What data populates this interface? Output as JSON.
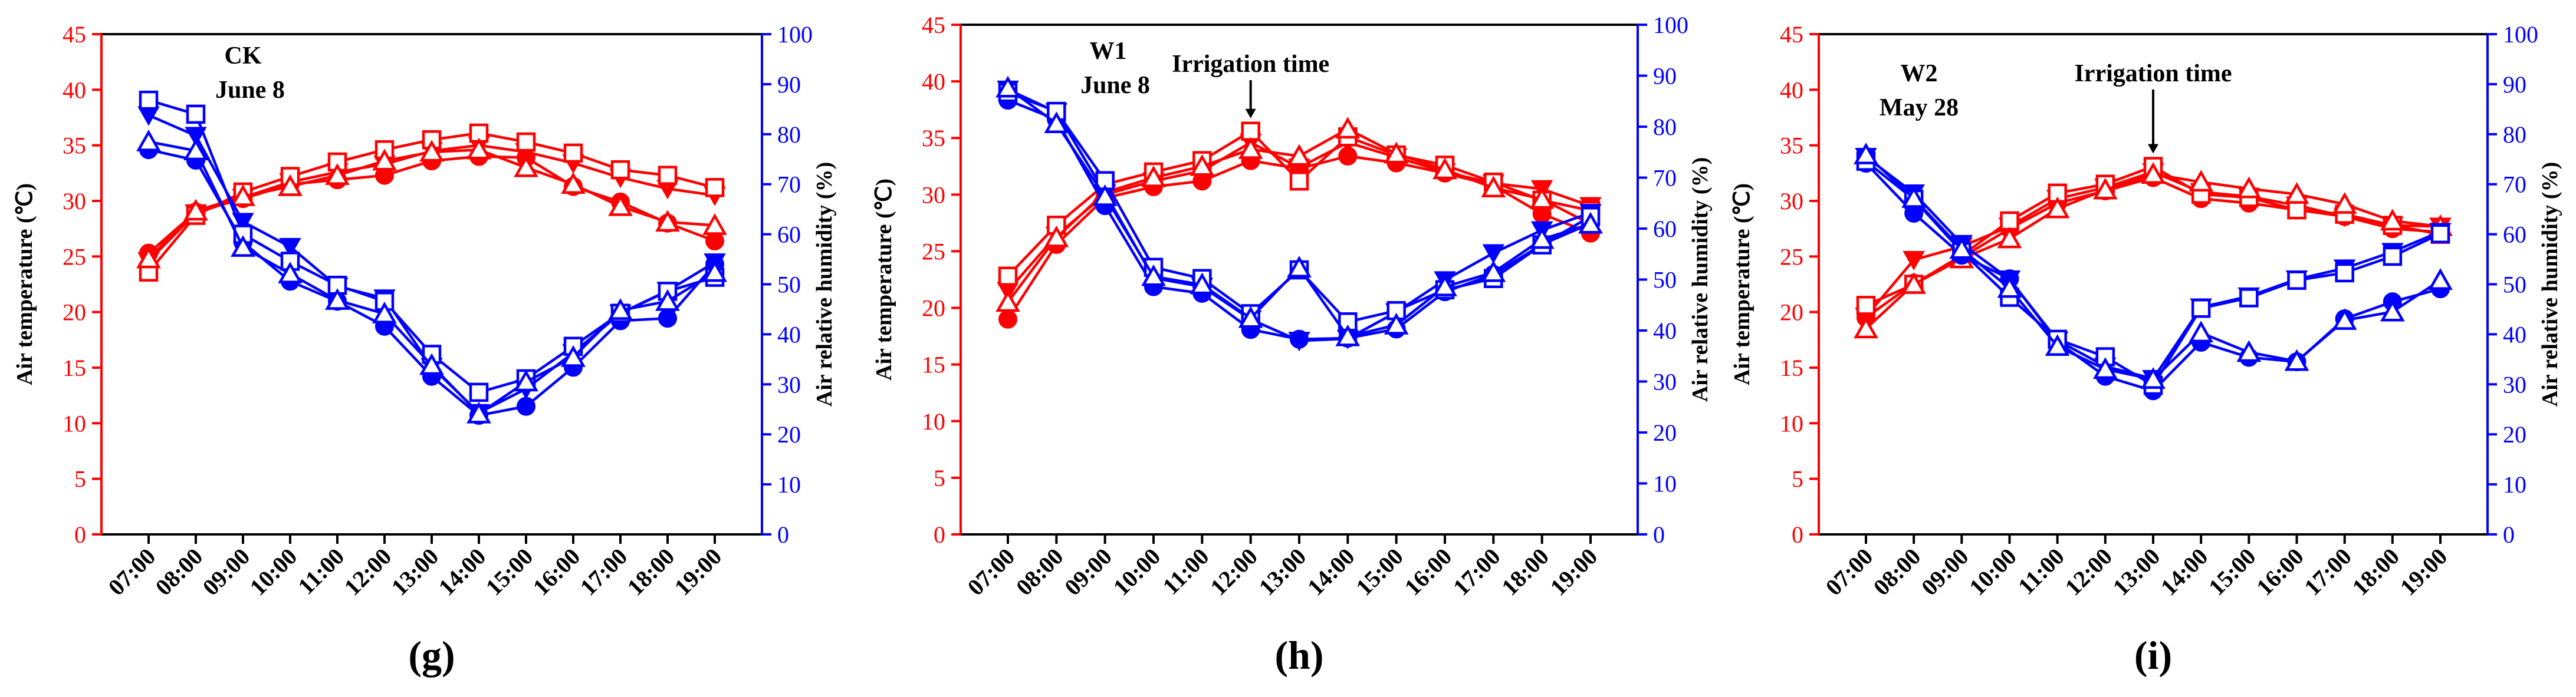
{
  "chart_data": [
    {
      "type": "line",
      "panel_label": "(g)",
      "treatment": "CK",
      "date": "June 8",
      "annotation": "",
      "irrigation_index": -1,
      "x": [
        "07:00",
        "08:00",
        "09:00",
        "10:00",
        "11:00",
        "12:00",
        "13:00",
        "14:00",
        "15:00",
        "16:00",
        "17:00",
        "18:00",
        "19:00"
      ],
      "ylabel_left": "Air temperature (℃)",
      "ylabel_right": "Air relative humidity (%)",
      "ylim_left": [
        0,
        45
      ],
      "ylim_right": [
        0,
        100
      ],
      "yticks_left": [
        "0",
        "5",
        "10",
        "15",
        "20",
        "25",
        "30",
        "35",
        "40",
        "45"
      ],
      "yticks_right": [
        "0",
        "10",
        "20",
        "30",
        "40",
        "50",
        "60",
        "70",
        "80",
        "90",
        "100"
      ],
      "colors": {
        "temperature": "#ff0000",
        "humidity": "#0000ff"
      },
      "temperature_series": [
        {
          "marker": "filled-circle",
          "values": [
            25.3,
            29.0,
            30.2,
            31.5,
            31.9,
            32.3,
            33.6,
            34.0,
            33.9,
            31.3,
            29.9,
            28.0,
            26.4
          ]
        },
        {
          "marker": "filled-triangle-down",
          "values": [
            24.6,
            28.9,
            30.3,
            31.7,
            32.6,
            33.3,
            34.5,
            35.0,
            34.4,
            33.4,
            32.1,
            31.1,
            30.5
          ]
        },
        {
          "marker": "open-square",
          "values": [
            23.6,
            28.7,
            30.8,
            32.2,
            33.5,
            34.6,
            35.5,
            36.1,
            35.3,
            34.3,
            32.8,
            32.3,
            31.2
          ]
        },
        {
          "marker": "open-triangle-up",
          "values": [
            24.8,
            29.1,
            30.4,
            31.3,
            32.3,
            33.6,
            34.4,
            34.6,
            33.0,
            31.5,
            29.5,
            28.1,
            27.8
          ]
        }
      ],
      "humidity_series": [
        {
          "marker": "filled-circle",
          "values": [
            76.9,
            74.8,
            58.4,
            50.6,
            46.6,
            41.6,
            31.6,
            23.8,
            25.6,
            33.4,
            42.7,
            43.2,
            54.0
          ]
        },
        {
          "marker": "filled-triangle-down",
          "values": [
            83.8,
            79.7,
            62.5,
            57.5,
            49.6,
            47.2,
            33.5,
            24.3,
            29.1,
            36.3,
            44.2,
            48.7,
            54.4
          ]
        },
        {
          "marker": "open-square",
          "values": [
            86.8,
            84.0,
            60.0,
            54.6,
            49.8,
            46.6,
            36.0,
            28.4,
            31.1,
            37.6,
            44.2,
            48.6,
            51.4
          ]
        },
        {
          "marker": "open-triangle-up",
          "values": [
            78.5,
            76.7,
            57.4,
            52.1,
            46.8,
            44.1,
            33.8,
            24.1,
            30.5,
            35.4,
            44.8,
            46.6,
            52.4
          ]
        }
      ]
    },
    {
      "type": "line",
      "panel_label": "(h)",
      "treatment": "W1",
      "date": "June 8",
      "annotation": "Irrigation time",
      "irrigation_index": 5,
      "x": [
        "07:00",
        "08:00",
        "09:00",
        "10:00",
        "11:00",
        "12:00",
        "13:00",
        "14:00",
        "15:00",
        "16:00",
        "17:00",
        "18:00",
        "19:00"
      ],
      "ylabel_left": "Air temperature (℃)",
      "ylabel_right": "Air relative humidity (%)",
      "ylim_left": [
        0,
        45
      ],
      "ylim_right": [
        0,
        100
      ],
      "yticks_left": [
        "0",
        "5",
        "10",
        "15",
        "20",
        "25",
        "30",
        "35",
        "40",
        "45"
      ],
      "yticks_right": [
        "0",
        "10",
        "20",
        "30",
        "40",
        "50",
        "60",
        "70",
        "80",
        "90",
        "100"
      ],
      "colors": {
        "temperature": "#ff0000",
        "humidity": "#0000ff"
      },
      "temperature_series": [
        {
          "marker": "filled-circle",
          "values": [
            19.0,
            25.6,
            29.7,
            30.7,
            31.2,
            33.0,
            32.3,
            33.4,
            32.8,
            31.9,
            30.8,
            28.3,
            26.6
          ]
        },
        {
          "marker": "filled-triangle-down",
          "values": [
            21.5,
            26.4,
            30.0,
            31.2,
            32.1,
            34.6,
            32.4,
            34.6,
            33.3,
            32.0,
            31.0,
            30.5,
            29.0
          ]
        },
        {
          "marker": "open-square",
          "values": [
            22.8,
            27.3,
            30.9,
            32.0,
            33.0,
            35.6,
            31.2,
            35.1,
            33.5,
            32.6,
            31.1,
            29.5,
            28.6
          ]
        },
        {
          "marker": "open-triangle-up",
          "values": [
            20.5,
            26.2,
            30.2,
            31.5,
            32.5,
            34.0,
            33.4,
            35.8,
            33.6,
            32.2,
            30.6,
            29.6,
            27.4
          ]
        }
      ],
      "humidity_series": [
        {
          "marker": "filled-circle",
          "values": [
            85.2,
            81.4,
            64.5,
            48.6,
            47.3,
            40.2,
            38.3,
            38.5,
            40.3,
            47.6,
            51.0,
            56.9,
            61.0
          ]
        },
        {
          "marker": "filled-triangle-down",
          "values": [
            87.3,
            82.9,
            67.0,
            50.3,
            48.6,
            42.2,
            38.0,
            38.4,
            43.6,
            49.9,
            55.2,
            59.7,
            63.1
          ]
        },
        {
          "marker": "open-square",
          "values": [
            86.7,
            83.0,
            69.4,
            52.4,
            50.2,
            43.3,
            51.9,
            41.7,
            43.9,
            48.0,
            50.2,
            56.8,
            62.4
          ]
        },
        {
          "marker": "open-triangle-up",
          "values": [
            87.6,
            80.6,
            66.3,
            50.6,
            49.0,
            42.4,
            52.3,
            38.8,
            41.1,
            48.6,
            51.4,
            57.9,
            60.9
          ]
        }
      ]
    },
    {
      "type": "line",
      "panel_label": "(i)",
      "treatment": "W2",
      "date": "May 28",
      "annotation": "Irrigation time",
      "irrigation_index": 6,
      "x": [
        "07:00",
        "08:00",
        "09:00",
        "10:00",
        "11:00",
        "12:00",
        "13:00",
        "14:00",
        "15:00",
        "16:00",
        "17:00",
        "18:00",
        "19:00"
      ],
      "ylabel_left": "Air temperature (℃)",
      "ylabel_right": "Air relative humidity (%)",
      "ylim_left": [
        0,
        45
      ],
      "ylim_right": [
        0,
        100
      ],
      "yticks_left": [
        "0",
        "5",
        "10",
        "15",
        "20",
        "25",
        "30",
        "35",
        "40",
        "45"
      ],
      "yticks_right": [
        "0",
        "10",
        "20",
        "30",
        "40",
        "50",
        "60",
        "70",
        "80",
        "90",
        "100"
      ],
      "colors": {
        "temperature": "#ff0000",
        "humidity": "#0000ff"
      },
      "temperature_series": [
        {
          "marker": "filled-circle",
          "values": [
            19.5,
            22.6,
            24.9,
            27.5,
            29.8,
            30.9,
            32.1,
            30.2,
            29.8,
            29.2,
            28.6,
            27.5,
            27.2
          ]
        },
        {
          "marker": "filled-triangle-down",
          "values": [
            19.6,
            24.7,
            25.9,
            27.7,
            30.2,
            31.2,
            32.6,
            30.8,
            30.4,
            29.6,
            28.6,
            27.8,
            27.7
          ]
        },
        {
          "marker": "open-square",
          "values": [
            20.6,
            22.5,
            25.1,
            28.2,
            30.7,
            31.5,
            33.1,
            30.6,
            30.3,
            29.2,
            28.8,
            27.8,
            27.0
          ]
        },
        {
          "marker": "open-triangle-up",
          "values": [
            18.5,
            22.5,
            24.8,
            26.6,
            29.3,
            31.0,
            32.4,
            31.7,
            31.1,
            30.6,
            29.7,
            28.2,
            27.7
          ]
        }
      ],
      "humidity_series": [
        {
          "marker": "filled-circle",
          "values": [
            74.2,
            64.2,
            55.8,
            51.1,
            38.5,
            31.6,
            28.7,
            38.4,
            35.4,
            34.5,
            43.1,
            46.5,
            49.1
          ]
        },
        {
          "marker": "filled-triangle-down",
          "values": [
            75.5,
            68.2,
            58.1,
            51.0,
            38.8,
            33.6,
            31.1,
            45.4,
            47.6,
            51.0,
            53.2,
            56.5,
            60.5
          ]
        },
        {
          "marker": "open-square",
          "values": [
            74.6,
            67.0,
            56.5,
            47.4,
            39.0,
            35.5,
            29.8,
            45.2,
            47.3,
            50.8,
            52.3,
            55.6,
            60.1
          ]
        },
        {
          "marker": "open-triangle-up",
          "values": [
            75.9,
            67.2,
            57.0,
            49.2,
            37.6,
            33.0,
            31.0,
            40.3,
            36.4,
            34.6,
            42.8,
            44.5,
            50.8
          ]
        }
      ]
    }
  ]
}
